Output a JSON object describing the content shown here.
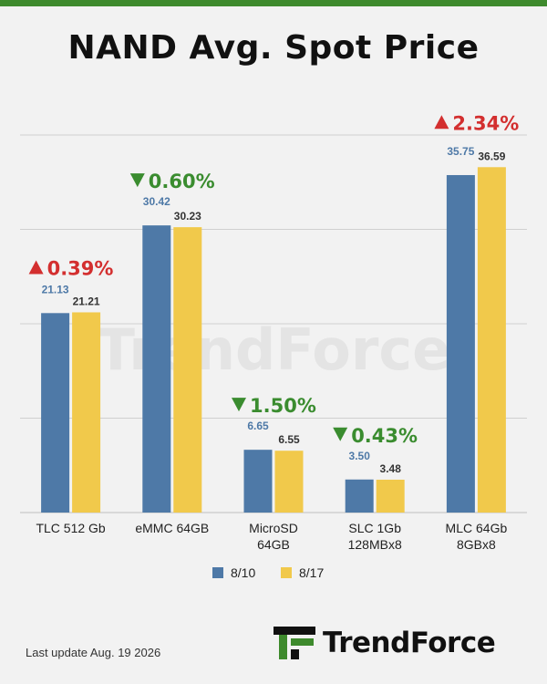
{
  "title": "NAND Avg. Spot Price",
  "watermark": "TrendForce",
  "footer": {
    "last_update": "Last update  Aug. 19  2026",
    "logo_text": "TrendForce"
  },
  "colors": {
    "series_1": "#4e79a7",
    "series_2": "#f1c94b",
    "up": "#d32f2f",
    "down": "#3a8c2f",
    "grid": "#d0d0d0",
    "brand": "#3e8a2d"
  },
  "chart_data": {
    "type": "bar",
    "title": "NAND Avg. Spot Price",
    "categories": [
      [
        "TLC 512 Gb"
      ],
      [
        "eMMC 64GB"
      ],
      [
        "MicroSD",
        "64GB"
      ],
      [
        "SLC 1Gb",
        "128MBx8"
      ],
      [
        "MLC 64Gb",
        "8GBx8"
      ]
    ],
    "series": [
      {
        "name": "8/10",
        "values": [
          21.13,
          30.42,
          6.65,
          3.5,
          35.75
        ]
      },
      {
        "name": "8/17",
        "values": [
          21.21,
          30.23,
          6.55,
          3.48,
          36.59
        ]
      }
    ],
    "value_labels": [
      [
        "21.13",
        "30.42",
        "6.65",
        "3.50",
        "35.75"
      ],
      [
        "21.21",
        "30.23",
        "6.55",
        "3.48",
        "36.59"
      ]
    ],
    "changes": [
      {
        "direction": "up",
        "label": "0.39%"
      },
      {
        "direction": "down",
        "label": "0.60%"
      },
      {
        "direction": "down",
        "label": "1.50%"
      },
      {
        "direction": "down",
        "label": "0.43%"
      },
      {
        "direction": "up",
        "label": "2.34%"
      }
    ],
    "ylim": [
      0,
      40
    ],
    "gridline_values": [
      10,
      20,
      30,
      40
    ],
    "grid": true,
    "legend_position": "bottom",
    "xlabel": "",
    "ylabel": ""
  }
}
